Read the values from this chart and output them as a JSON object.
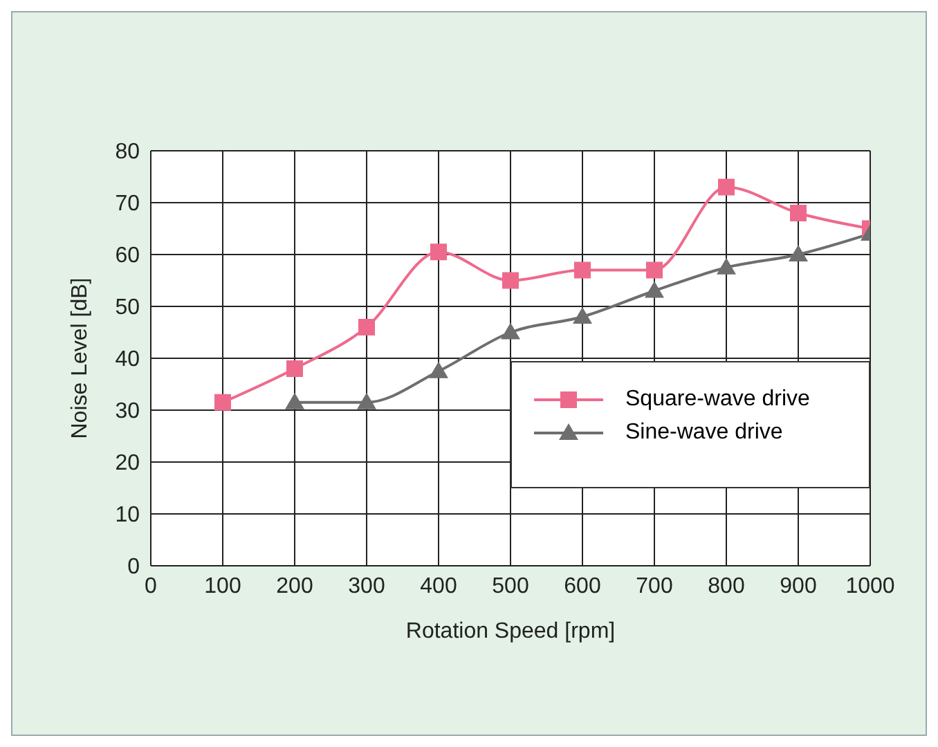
{
  "chart_data": {
    "type": "line",
    "xlabel": "Rotation Speed [rpm]",
    "ylabel": "Noise Level [dB]",
    "x": [
      100,
      200,
      300,
      400,
      500,
      600,
      700,
      800,
      900,
      1000
    ],
    "series": [
      {
        "name": "Square-wave drive",
        "color": "#ee6a8c",
        "marker": "square",
        "values": [
          31.5,
          38,
          46,
          60.5,
          55,
          57,
          57,
          73,
          68,
          65
        ]
      },
      {
        "name": "Sine-wave drive",
        "color": "#6e6e6e",
        "marker": "triangle",
        "values": [
          null,
          31.5,
          31.5,
          37.5,
          45,
          48,
          53,
          57.5,
          60,
          64
        ]
      }
    ],
    "xlim": [
      0,
      1000
    ],
    "xticks": [
      0,
      100,
      200,
      300,
      400,
      500,
      600,
      700,
      800,
      900,
      1000
    ],
    "ylim": [
      0,
      80
    ],
    "yticks": [
      0,
      10,
      20,
      30,
      40,
      50,
      60,
      70,
      80
    ],
    "grid": true,
    "legend": "bottom right",
    "line_style": "solid"
  }
}
